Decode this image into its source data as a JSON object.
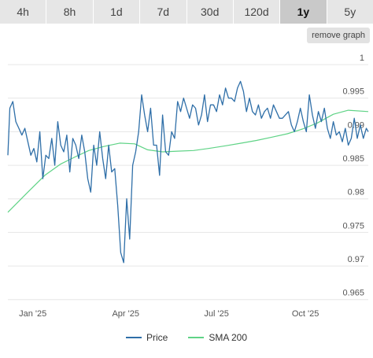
{
  "tabs": [
    {
      "label": "4h",
      "active": false
    },
    {
      "label": "8h",
      "active": false
    },
    {
      "label": "1d",
      "active": false
    },
    {
      "label": "7d",
      "active": false
    },
    {
      "label": "30d",
      "active": false
    },
    {
      "label": "120d",
      "active": false
    },
    {
      "label": "1y",
      "active": true
    },
    {
      "label": "5y",
      "active": false
    }
  ],
  "remove_graph_label": "remove graph",
  "colors": {
    "price": "#2f6fa8",
    "sma": "#5fd386",
    "grid": "#e6e6e6"
  },
  "chart_data": {
    "type": "line",
    "x_labels": [
      "Jan '25",
      "Apr '25",
      "Jul '25",
      "Oct '25"
    ],
    "y_ticks": [
      1,
      0.995,
      0.99,
      0.985,
      0.98,
      0.975,
      0.97,
      0.965
    ],
    "ylim": [
      0.9645,
      1.002
    ],
    "legend": [
      "Price",
      "SMA 200"
    ],
    "legend_position": "bottom",
    "grid": true,
    "series": [
      {
        "name": "Price",
        "x": [
          "2024-12-14",
          "2024-12-16",
          "2024-12-19",
          "2024-12-22",
          "2024-12-25",
          "2024-12-28",
          "2024-12-31",
          "2025-01-03",
          "2025-01-06",
          "2025-01-09",
          "2025-01-12",
          "2025-01-15",
          "2025-01-18",
          "2025-01-21",
          "2025-01-24",
          "2025-01-27",
          "2025-01-30",
          "2025-02-02",
          "2025-02-05",
          "2025-02-08",
          "2025-02-11",
          "2025-02-14",
          "2025-02-17",
          "2025-02-20",
          "2025-02-23",
          "2025-02-26",
          "2025-03-01",
          "2025-03-04",
          "2025-03-07",
          "2025-03-10",
          "2025-03-13",
          "2025-03-16",
          "2025-03-19",
          "2025-03-22",
          "2025-03-25",
          "2025-03-28",
          "2025-03-31",
          "2025-04-03",
          "2025-04-06",
          "2025-04-09",
          "2025-04-12",
          "2025-04-15",
          "2025-04-18",
          "2025-04-21",
          "2025-04-24",
          "2025-04-27",
          "2025-04-30",
          "2025-05-03",
          "2025-05-06",
          "2025-05-09",
          "2025-05-12",
          "2025-05-15",
          "2025-05-18",
          "2025-05-21",
          "2025-05-24",
          "2025-05-27",
          "2025-05-30",
          "2025-06-02",
          "2025-06-05",
          "2025-06-08",
          "2025-06-11",
          "2025-06-14",
          "2025-06-17",
          "2025-06-20",
          "2025-06-23",
          "2025-06-26",
          "2025-06-29",
          "2025-07-02",
          "2025-07-05",
          "2025-07-08",
          "2025-07-11",
          "2025-07-14",
          "2025-07-17",
          "2025-07-20",
          "2025-07-23",
          "2025-07-26",
          "2025-07-29",
          "2025-08-01",
          "2025-08-04",
          "2025-08-07",
          "2025-08-10",
          "2025-08-13",
          "2025-08-16",
          "2025-08-19",
          "2025-08-22",
          "2025-08-25",
          "2025-08-28",
          "2025-08-31",
          "2025-09-03",
          "2025-09-06",
          "2025-09-09",
          "2025-09-12",
          "2025-09-15",
          "2025-09-18",
          "2025-09-21",
          "2025-09-24",
          "2025-09-27",
          "2025-09-30",
          "2025-10-03",
          "2025-10-06",
          "2025-10-09",
          "2025-10-12",
          "2025-10-15",
          "2025-10-18",
          "2025-10-21",
          "2025-10-24",
          "2025-10-27",
          "2025-10-30",
          "2025-11-02",
          "2025-11-05",
          "2025-11-08",
          "2025-11-11",
          "2025-11-14",
          "2025-11-17",
          "2025-11-20",
          "2025-11-23",
          "2025-11-26",
          "2025-11-29",
          "2025-12-02",
          "2025-12-05",
          "2025-12-08",
          "2025-12-10"
        ],
        "values": [
          0.9865,
          0.9935,
          0.9945,
          0.9915,
          0.9905,
          0.9895,
          0.9905,
          0.9885,
          0.9865,
          0.9875,
          0.9855,
          0.99,
          0.983,
          0.9865,
          0.986,
          0.989,
          0.985,
          0.9915,
          0.988,
          0.987,
          0.9895,
          0.984,
          0.989,
          0.988,
          0.986,
          0.9895,
          0.987,
          0.983,
          0.981,
          0.988,
          0.985,
          0.99,
          0.986,
          0.983,
          0.988,
          0.984,
          0.9845,
          0.979,
          0.972,
          0.9705,
          0.98,
          0.974,
          0.985,
          0.987,
          0.99,
          0.9955,
          0.9925,
          0.99,
          0.9935,
          0.988,
          0.988,
          0.9835,
          0.9925,
          0.987,
          0.9865,
          0.99,
          0.989,
          0.9945,
          0.993,
          0.995,
          0.9935,
          0.992,
          0.994,
          0.9935,
          0.991,
          0.9925,
          0.9955,
          0.9915,
          0.994,
          0.994,
          0.993,
          0.9955,
          0.994,
          0.9965,
          0.995,
          0.995,
          0.9945,
          0.9965,
          0.9975,
          0.996,
          0.993,
          0.995,
          0.993,
          0.9925,
          0.994,
          0.992,
          0.993,
          0.9935,
          0.992,
          0.994,
          0.993,
          0.992,
          0.992,
          0.9925,
          0.993,
          0.991,
          0.99,
          0.9915,
          0.9935,
          0.9915,
          0.99,
          0.9955,
          0.9925,
          0.9905,
          0.993,
          0.9915,
          0.9935,
          0.9905,
          0.989,
          0.9915,
          0.9895,
          0.99,
          0.9885,
          0.9905,
          0.988,
          0.989,
          0.992,
          0.989,
          0.991,
          0.989,
          0.9905,
          0.99
        ]
      },
      {
        "name": "SMA 200",
        "x": [
          "2024-12-14",
          "2025-01-03",
          "2025-01-20",
          "2025-02-05",
          "2025-02-20",
          "2025-03-05",
          "2025-03-20",
          "2025-04-05",
          "2025-04-20",
          "2025-05-03",
          "2025-05-18",
          "2025-06-02",
          "2025-06-18",
          "2025-07-03",
          "2025-07-20",
          "2025-08-05",
          "2025-08-20",
          "2025-09-05",
          "2025-09-20",
          "2025-10-05",
          "2025-10-20",
          "2025-11-05",
          "2025-11-20",
          "2025-12-10"
        ],
        "values": [
          0.978,
          0.981,
          0.9835,
          0.9852,
          0.9863,
          0.9872,
          0.9878,
          0.9883,
          0.9882,
          0.9873,
          0.987,
          0.9871,
          0.9872,
          0.9875,
          0.9879,
          0.9883,
          0.9887,
          0.9892,
          0.9897,
          0.9904,
          0.9913,
          0.9926,
          0.9932,
          0.993
        ]
      }
    ]
  }
}
